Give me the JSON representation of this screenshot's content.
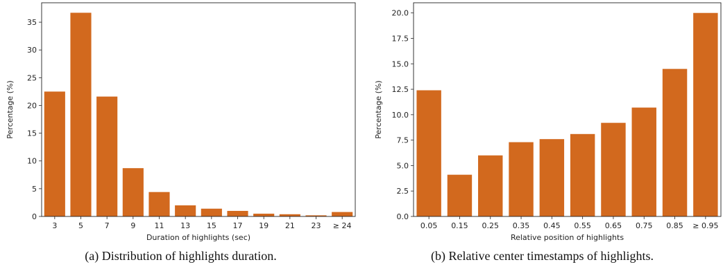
{
  "captions": {
    "a": "(a) Distribution of highlights duration.",
    "b": "(b) Relative center timestamps of highlights."
  },
  "colors": {
    "bar": "#d2691e",
    "axis": "#222222"
  },
  "chart_data": [
    {
      "type": "bar",
      "categories": [
        "3",
        "5",
        "7",
        "9",
        "11",
        "13",
        "15",
        "17",
        "19",
        "21",
        "23",
        "≥ 24"
      ],
      "values": [
        22.5,
        36.7,
        21.6,
        8.7,
        4.4,
        2.0,
        1.4,
        1.0,
        0.5,
        0.4,
        0.2,
        0.8
      ],
      "xlabel": "Duration of highlights (sec)",
      "ylabel": "Percentage (%)",
      "ylim": [
        0,
        38.5
      ],
      "yticks": [
        "0",
        "5",
        "10",
        "15",
        "20",
        "25",
        "30",
        "35"
      ],
      "grid": false
    },
    {
      "type": "bar",
      "categories": [
        "0.05",
        "0.15",
        "0.25",
        "0.35",
        "0.45",
        "0.55",
        "0.65",
        "0.75",
        "0.85",
        "≥ 0.95"
      ],
      "values": [
        12.4,
        4.1,
        6.0,
        7.3,
        7.6,
        8.1,
        9.2,
        10.7,
        14.5,
        20.0
      ],
      "xlabel": "Relative position of highlights",
      "ylabel": "Percentage (%)",
      "ylim": [
        0,
        21.0
      ],
      "yticks": [
        "0.0",
        "2.5",
        "5.0",
        "7.5",
        "10.0",
        "12.5",
        "15.0",
        "17.5",
        "20.0"
      ],
      "grid": false
    }
  ]
}
